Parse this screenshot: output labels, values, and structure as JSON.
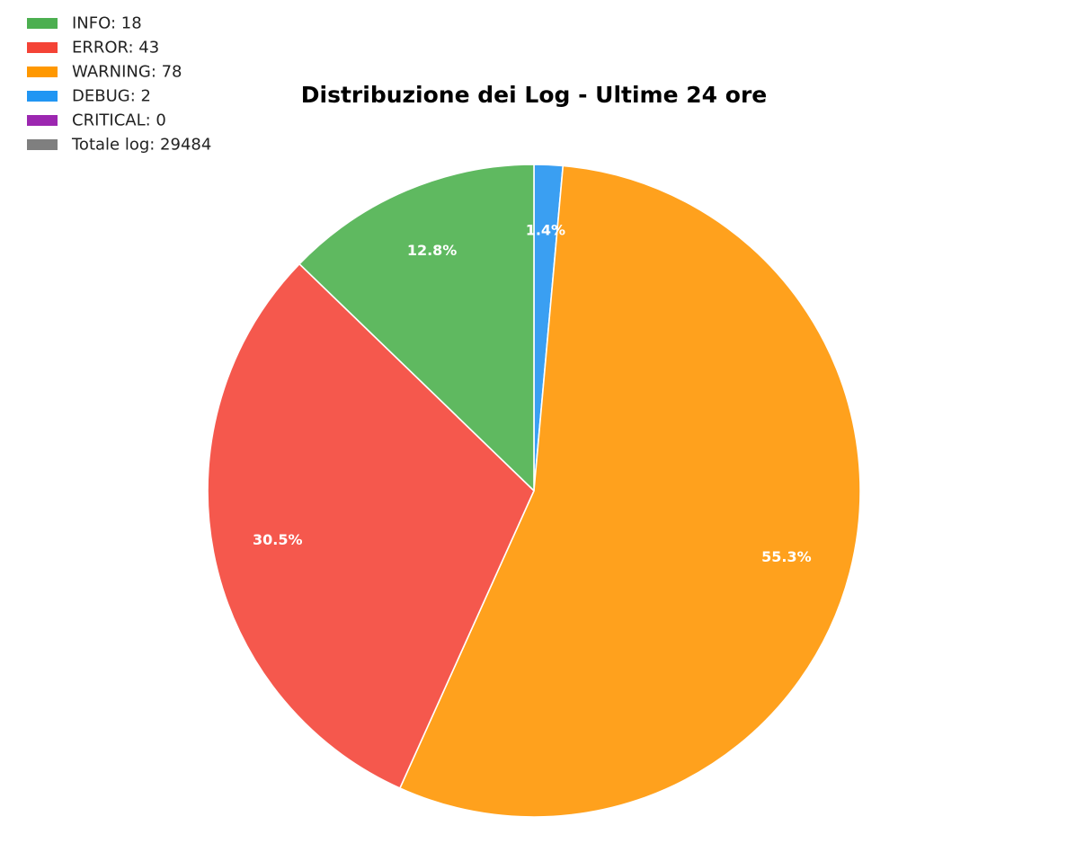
{
  "chart_data": {
    "type": "pie",
    "title": "Distribuzione dei Log - Ultime 24 ore",
    "start_angle_deg": 90,
    "direction": "clockwise",
    "slices": [
      {
        "name": "DEBUG",
        "value": 2,
        "percent_label": "1.4%",
        "color": "#3a9ff2"
      },
      {
        "name": "WARNING",
        "value": 78,
        "percent_label": "55.3%",
        "color": "#ffa11d"
      },
      {
        "name": "ERROR",
        "value": 43,
        "percent_label": "30.5%",
        "color": "#f5584d"
      },
      {
        "name": "INFO",
        "value": 18,
        "percent_label": "12.8%",
        "color": "#5fb960"
      }
    ],
    "legend_position": "top-left",
    "legend": [
      {
        "label": "INFO: 18",
        "color": "#4caf50"
      },
      {
        "label": "ERROR: 43",
        "color": "#f44336"
      },
      {
        "label": "WARNING: 78",
        "color": "#ff9800"
      },
      {
        "label": "DEBUG: 2",
        "color": "#2196f3"
      },
      {
        "label": "CRITICAL: 0",
        "color": "#9c27b0"
      },
      {
        "label": "Totale log: 29484",
        "color": "#7f7f7f"
      }
    ]
  }
}
